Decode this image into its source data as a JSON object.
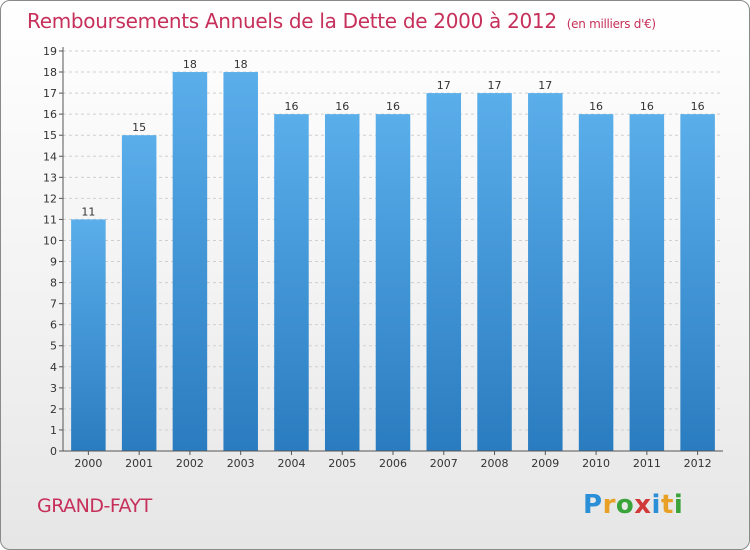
{
  "header": {
    "title": "Remboursements Annuels de la Dette de 2000 à 2012",
    "unit": "(en milliers d'€)"
  },
  "footer": {
    "commune": "GRAND-FAYT",
    "logo_letters": [
      {
        "ch": "P",
        "color": "#2a8fd6"
      },
      {
        "ch": "r",
        "color": "#e8a126"
      },
      {
        "ch": "o",
        "color": "#3aa33a"
      },
      {
        "ch": "x",
        "color": "#d23a3a"
      },
      {
        "ch": "i",
        "color": "#2a8fd6"
      },
      {
        "ch": "t",
        "color": "#e8a126"
      },
      {
        "ch": "i",
        "color": "#3aa33a"
      }
    ]
  },
  "chart_data": {
    "type": "bar",
    "categories": [
      "2000",
      "2001",
      "2002",
      "2003",
      "2004",
      "2005",
      "2006",
      "2007",
      "2008",
      "2009",
      "2010",
      "2011",
      "2012"
    ],
    "values": [
      11,
      15,
      18,
      18,
      16,
      16,
      16,
      17,
      17,
      17,
      16,
      16,
      16
    ],
    "title": "Remboursements Annuels de la Dette de 2000 à 2012",
    "ylim": [
      0,
      19
    ],
    "yticks": [
      0,
      1,
      2,
      3,
      4,
      5,
      6,
      7,
      8,
      9,
      10,
      11,
      12,
      13,
      14,
      15,
      16,
      17,
      18,
      19
    ],
    "grid": true,
    "bar_color": "#3d97db"
  }
}
